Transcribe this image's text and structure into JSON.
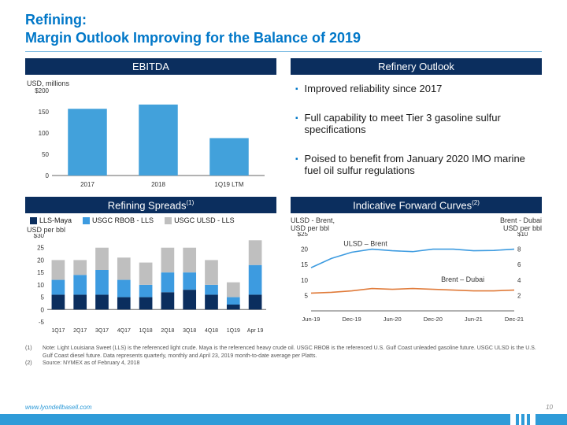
{
  "title_l1": "Refining:",
  "title_l2": "Margin Outlook Improving for the Balance of 2019",
  "panels": {
    "ebitda": {
      "header": "EBITDA"
    },
    "outlook": {
      "header": "Refinery Outlook"
    },
    "spreads": {
      "header": "Refining Spreads",
      "sup": "(1)"
    },
    "curves": {
      "header": "Indicative Forward Curves",
      "sup": "(2)"
    }
  },
  "ebitda_chart": {
    "ylabel": "USD,  millions",
    "ylim": [
      0,
      200
    ],
    "ytick_step": 50,
    "ytick_prefix_top": "$",
    "categories": [
      "2017",
      "2018",
      "1Q19 LTM"
    ],
    "values": [
      157,
      167,
      88
    ],
    "bar_color": "#42a1db",
    "axis_color": "#666666",
    "grid_color": "#d9d9d9",
    "bar_width": 0.55
  },
  "bullets": [
    "Improved reliability since 2017",
    "Full capability to meet Tier 3 gasoline sulfur specifications",
    "Poised to benefit from January 2020 IMO marine fuel oil sulfur regulations"
  ],
  "spreads_chart": {
    "ylabel": "USD per bbl",
    "ylim": [
      -5,
      30
    ],
    "ytick_step": 5,
    "ytick_prefix_top": "$",
    "categories": [
      "1Q17",
      "2Q17",
      "3Q17",
      "4Q17",
      "1Q18",
      "2Q18",
      "3Q18",
      "4Q18",
      "1Q19",
      "Apr 19"
    ],
    "series": [
      {
        "name": "LLS-Maya",
        "color": "#0b2e5e",
        "values": [
          6,
          6,
          6,
          5,
          5,
          7,
          8,
          6,
          2,
          6
        ]
      },
      {
        "name": "USGC RBOB - LLS",
        "color": "#3d9be0",
        "values": [
          6,
          8,
          10,
          7,
          5,
          8,
          7,
          4,
          3,
          12
        ]
      },
      {
        "name": "USGC ULSD - LLS",
        "color": "#bfbfbf",
        "values": [
          8,
          6,
          9,
          9,
          9,
          10,
          10,
          10,
          6,
          10
        ]
      }
    ],
    "axis_color": "#666666"
  },
  "curves_chart": {
    "left_label_l1": "ULSD - Brent,",
    "left_label_l2": "USD per bbl",
    "right_label_l1": "Brent - Dubai",
    "right_label_l2": "USD per bbl",
    "y_left": {
      "lim": [
        0,
        25
      ],
      "tick_step": 5,
      "prefix_top": "$"
    },
    "y_right": {
      "lim": [
        0,
        10
      ],
      "tick_step": 2,
      "prefix_top": "$"
    },
    "x_labels": [
      "Jun-19",
      "Dec-19",
      "Jun-20",
      "Dec-20",
      "Jun-21",
      "Dec-21"
    ],
    "lines": [
      {
        "name": "ULSD – Brent",
        "axis": "left",
        "color": "#3d9be0",
        "pts": [
          [
            0,
            14
          ],
          [
            0.5,
            17
          ],
          [
            1,
            19
          ],
          [
            1.5,
            20
          ],
          [
            2,
            19.5
          ],
          [
            2.5,
            19.2
          ],
          [
            3,
            20
          ],
          [
            3.5,
            20
          ],
          [
            4,
            19.5
          ],
          [
            4.5,
            19.6
          ],
          [
            5,
            20
          ]
        ]
      },
      {
        "name": "Brent – Dubai",
        "axis": "right",
        "color": "#e07b3a",
        "pts": [
          [
            0,
            2.3
          ],
          [
            0.5,
            2.4
          ],
          [
            1,
            2.6
          ],
          [
            1.5,
            2.9
          ],
          [
            2,
            2.8
          ],
          [
            2.5,
            2.9
          ],
          [
            3,
            2.8
          ],
          [
            3.5,
            2.7
          ],
          [
            4,
            2.6
          ],
          [
            4.5,
            2.6
          ],
          [
            5,
            2.7
          ]
        ]
      }
    ],
    "axis_color": "#666666"
  },
  "footnotes": [
    {
      "n": "(1)",
      "t": "Note: Light Louisiana Sweet (LLS) is the referenced light crude.  Maya is the referenced heavy crude oil.  USGC RBOB is the referenced U.S. Gulf Coast unleaded gasoline future.  USGC ULSD is the U.S. Gulf Coast diesel future.  Data represents quarterly, monthly and April 23, 2019 month-to-date average per Platts."
    },
    {
      "n": "(2)",
      "t": "Source: NYMEX as of February 4, 2018"
    }
  ],
  "footer": {
    "url": "www.lyondellbasell.com",
    "page": "10"
  }
}
